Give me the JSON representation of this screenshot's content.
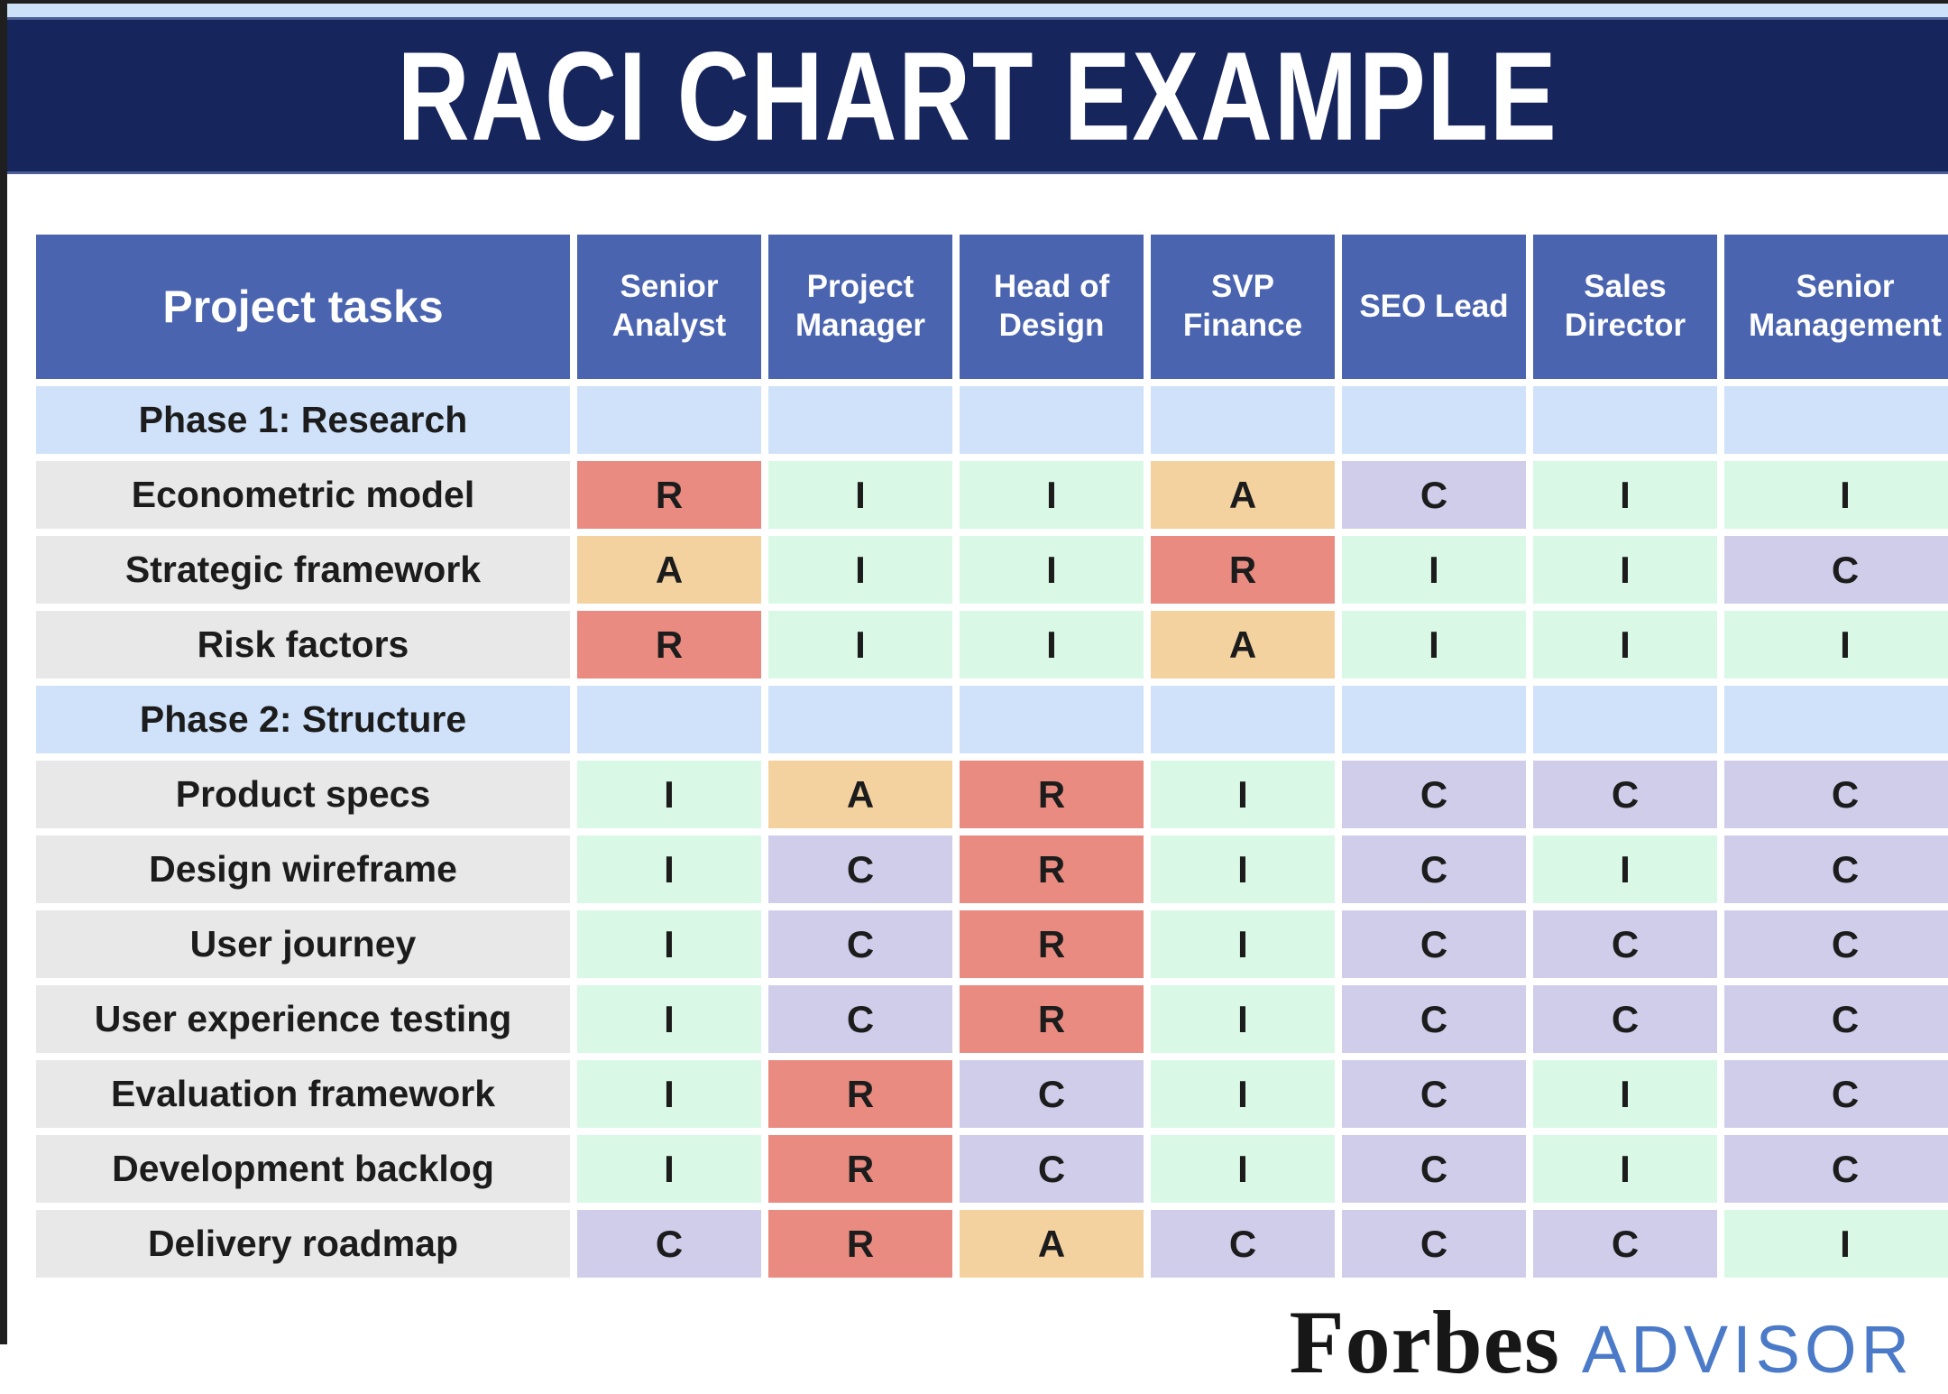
{
  "title": "RACI CHART EXAMPLE",
  "logo": {
    "brand": "Forbes",
    "suffix": "ADVISOR"
  },
  "colors": {
    "page_bg": "#ffffff",
    "frame_border": "#1f1f1f",
    "top_strip": "#cde1f8",
    "banner_bg": "#16255b",
    "banner_edge": "#4d5e96",
    "banner_text": "#ffffff",
    "header_blue": "#4a64b0",
    "header_text": "#ffffff",
    "phase_blue": "#cfe2fa",
    "task_gray": "#e8e8e8",
    "text_dark": "#1c1c1c",
    "raci_R": "#e98b80",
    "raci_A": "#f3d2a0",
    "raci_C": "#d0cdeb",
    "raci_I": "#d9f9e6",
    "forbes_black": "#171717",
    "advisor_blue": "#4a7ac8"
  },
  "chart_data": {
    "type": "table",
    "title": "RACI CHART EXAMPLE",
    "task_column_header": "Project tasks",
    "role_columns": [
      "Senior Analyst",
      "Project Manager",
      "Head of Design",
      "SVP Finance",
      "SEO Lead",
      "Sales Director",
      "Senior Management"
    ],
    "cell_color_key": {
      "R": "#e98b80",
      "A": "#f3d2a0",
      "C": "#d0cdeb",
      "I": "#d9f9e6"
    },
    "rows": [
      {
        "type": "phase",
        "label": "Phase 1: Research",
        "values": [
          "",
          "",
          "",
          "",
          "",
          "",
          ""
        ]
      },
      {
        "type": "task",
        "label": "Econometric model",
        "values": [
          "R",
          "I",
          "I",
          "A",
          "C",
          "I",
          "I"
        ]
      },
      {
        "type": "task",
        "label": "Strategic framework",
        "values": [
          "A",
          "I",
          "I",
          "R",
          "I",
          "I",
          "C"
        ]
      },
      {
        "type": "task",
        "label": "Risk factors",
        "values": [
          "R",
          "I",
          "I",
          "A",
          "I",
          "I",
          "I"
        ]
      },
      {
        "type": "phase",
        "label": "Phase 2: Structure",
        "values": [
          "",
          "",
          "",
          "",
          "",
          "",
          ""
        ]
      },
      {
        "type": "task",
        "label": "Product specs",
        "values": [
          "I",
          "A",
          "R",
          "I",
          "C",
          "C",
          "C"
        ]
      },
      {
        "type": "task",
        "label": "Design wireframe",
        "values": [
          "I",
          "C",
          "R",
          "I",
          "C",
          "I",
          "C"
        ]
      },
      {
        "type": "task",
        "label": "User journey",
        "values": [
          "I",
          "C",
          "R",
          "I",
          "C",
          "C",
          "C"
        ]
      },
      {
        "type": "task",
        "label": "User experience testing",
        "values": [
          "I",
          "C",
          "R",
          "I",
          "C",
          "C",
          "C"
        ]
      },
      {
        "type": "task",
        "label": "Evaluation framework",
        "values": [
          "I",
          "R",
          "C",
          "I",
          "C",
          "I",
          "C"
        ]
      },
      {
        "type": "task",
        "label": "Development backlog",
        "values": [
          "I",
          "R",
          "C",
          "I",
          "C",
          "I",
          "C"
        ]
      },
      {
        "type": "task",
        "label": "Delivery roadmap",
        "values": [
          "C",
          "R",
          "A",
          "C",
          "C",
          "C",
          "I"
        ]
      }
    ]
  }
}
